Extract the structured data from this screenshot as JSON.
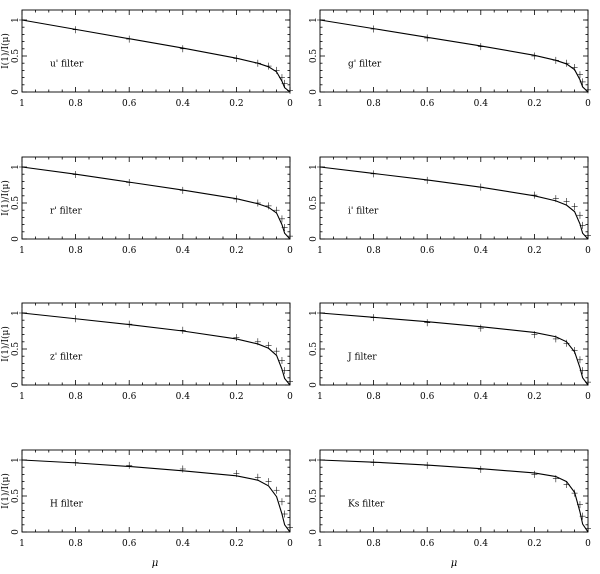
{
  "figure": {
    "y_axis_label": "I(1)/I(μ)",
    "x_axis_label": "μ"
  },
  "chart_data": [
    {
      "type": "line",
      "panel_label": "u' filter",
      "x_reversed": true,
      "xlim": [
        1,
        0
      ],
      "ylim": [
        0,
        1
      ],
      "x_ticks": [
        "1",
        "0.8",
        "0.6",
        "0.4",
        "0.2",
        "0"
      ],
      "y_ticks": [
        "0",
        "0.5",
        "1"
      ],
      "series": [
        {
          "style": "solid",
          "x": [
            1,
            0.8,
            0.6,
            0.4,
            0.2,
            0.12,
            0.08,
            0.05,
            0.03,
            0.02,
            0
          ],
          "y": [
            1,
            0.87,
            0.74,
            0.61,
            0.47,
            0.4,
            0.35,
            0.28,
            0.15,
            0.06,
            0
          ]
        },
        {
          "style": "cross",
          "x": [
            1,
            0.8,
            0.6,
            0.4,
            0.2,
            0.12,
            0.08,
            0.05,
            0.03,
            0.02,
            0
          ],
          "y": [
            1,
            0.865,
            0.735,
            0.6,
            0.465,
            0.4,
            0.36,
            0.3,
            0.2,
            0.12,
            0.02
          ]
        }
      ]
    },
    {
      "type": "line",
      "panel_label": "g' filter",
      "x_reversed": true,
      "xlim": [
        1,
        0
      ],
      "ylim": [
        0,
        1
      ],
      "x_ticks": [
        "1",
        "0.8",
        "0.6",
        "0.4",
        "0.2",
        "0"
      ],
      "y_ticks": [
        "0",
        "0.5",
        "1"
      ],
      "series": [
        {
          "style": "solid",
          "x": [
            1,
            0.8,
            0.6,
            0.4,
            0.2,
            0.12,
            0.08,
            0.05,
            0.03,
            0.02,
            0
          ],
          "y": [
            1,
            0.88,
            0.76,
            0.64,
            0.51,
            0.44,
            0.39,
            0.31,
            0.17,
            0.07,
            0
          ]
        },
        {
          "style": "cross",
          "x": [
            1,
            0.8,
            0.6,
            0.4,
            0.2,
            0.12,
            0.08,
            0.05,
            0.03,
            0.02,
            0
          ],
          "y": [
            1,
            0.875,
            0.75,
            0.63,
            0.5,
            0.44,
            0.4,
            0.34,
            0.24,
            0.14,
            0.03
          ]
        }
      ]
    },
    {
      "type": "line",
      "panel_label": "r' filter",
      "x_reversed": true,
      "xlim": [
        1,
        0
      ],
      "ylim": [
        0,
        1
      ],
      "x_ticks": [
        "1",
        "0.8",
        "0.6",
        "0.4",
        "0.2",
        "0"
      ],
      "y_ticks": [
        "0",
        "0.5",
        "1"
      ],
      "series": [
        {
          "style": "solid",
          "x": [
            1,
            0.8,
            0.6,
            0.4,
            0.2,
            0.12,
            0.08,
            0.05,
            0.03,
            0.02,
            0
          ],
          "y": [
            1,
            0.9,
            0.79,
            0.68,
            0.56,
            0.49,
            0.44,
            0.36,
            0.2,
            0.08,
            0
          ]
        },
        {
          "style": "cross",
          "x": [
            1,
            0.8,
            0.6,
            0.4,
            0.2,
            0.12,
            0.08,
            0.05,
            0.03,
            0.02,
            0
          ],
          "y": [
            1,
            0.895,
            0.785,
            0.675,
            0.555,
            0.5,
            0.46,
            0.4,
            0.28,
            0.16,
            0.04
          ]
        }
      ]
    },
    {
      "type": "line",
      "panel_label": "i' filter",
      "x_reversed": true,
      "xlim": [
        1,
        0
      ],
      "ylim": [
        0,
        1
      ],
      "x_ticks": [
        "1",
        "0.8",
        "0.6",
        "0.4",
        "0.2",
        "0"
      ],
      "y_ticks": [
        "0",
        "0.5",
        "1"
      ],
      "series": [
        {
          "style": "solid",
          "x": [
            1,
            0.8,
            0.6,
            0.4,
            0.2,
            0.12,
            0.08,
            0.05,
            0.03,
            0.02,
            0
          ],
          "y": [
            1,
            0.91,
            0.82,
            0.72,
            0.6,
            0.53,
            0.47,
            0.38,
            0.21,
            0.08,
            0
          ]
        },
        {
          "style": "cross",
          "x": [
            1,
            0.8,
            0.6,
            0.4,
            0.2,
            0.12,
            0.08,
            0.05,
            0.03,
            0.02,
            0
          ],
          "y": [
            1,
            0.905,
            0.815,
            0.72,
            0.61,
            0.56,
            0.52,
            0.45,
            0.33,
            0.19,
            0.05
          ]
        }
      ]
    },
    {
      "type": "line",
      "panel_label": "z' filter",
      "x_reversed": true,
      "xlim": [
        1,
        0
      ],
      "ylim": [
        0,
        1
      ],
      "x_ticks": [
        "1",
        "0.8",
        "0.6",
        "0.4",
        "0.2",
        "0"
      ],
      "y_ticks": [
        "0",
        "0.5",
        "1"
      ],
      "series": [
        {
          "style": "solid",
          "x": [
            1,
            0.8,
            0.6,
            0.4,
            0.2,
            0.12,
            0.08,
            0.05,
            0.03,
            0.02,
            0
          ],
          "y": [
            1,
            0.92,
            0.84,
            0.75,
            0.64,
            0.57,
            0.51,
            0.41,
            0.22,
            0.09,
            0
          ]
        },
        {
          "style": "cross",
          "x": [
            1,
            0.8,
            0.6,
            0.4,
            0.2,
            0.12,
            0.08,
            0.05,
            0.03,
            0.02,
            0
          ],
          "y": [
            1,
            0.92,
            0.845,
            0.76,
            0.66,
            0.6,
            0.55,
            0.47,
            0.34,
            0.2,
            0.05
          ]
        }
      ]
    },
    {
      "type": "line",
      "panel_label": "J filter",
      "x_reversed": true,
      "xlim": [
        1,
        0
      ],
      "ylim": [
        0,
        1
      ],
      "x_ticks": [
        "1",
        "0.8",
        "0.6",
        "0.4",
        "0.2",
        "0"
      ],
      "y_ticks": [
        "0",
        "0.5",
        "1"
      ],
      "series": [
        {
          "style": "solid",
          "x": [
            1,
            0.8,
            0.6,
            0.4,
            0.2,
            0.12,
            0.08,
            0.05,
            0.03,
            0.02,
            0
          ],
          "y": [
            1,
            0.94,
            0.88,
            0.81,
            0.73,
            0.67,
            0.6,
            0.46,
            0.24,
            0.1,
            0
          ]
        },
        {
          "style": "cross",
          "x": [
            1,
            0.8,
            0.6,
            0.4,
            0.2,
            0.12,
            0.08,
            0.05,
            0.03,
            0.02,
            0
          ],
          "y": [
            1,
            0.935,
            0.865,
            0.79,
            0.7,
            0.64,
            0.58,
            0.48,
            0.35,
            0.2,
            0.04
          ]
        }
      ]
    },
    {
      "type": "line",
      "panel_label": "H filter",
      "x_reversed": true,
      "xlim": [
        1,
        0
      ],
      "ylim": [
        0,
        1
      ],
      "x_ticks": [
        "1",
        "0.8",
        "0.6",
        "0.4",
        "0.2",
        "0"
      ],
      "y_ticks": [
        "0",
        "0.5",
        "1"
      ],
      "series": [
        {
          "style": "solid",
          "x": [
            1,
            0.8,
            0.6,
            0.4,
            0.2,
            0.12,
            0.08,
            0.05,
            0.03,
            0.02,
            0
          ],
          "y": [
            1,
            0.96,
            0.91,
            0.85,
            0.78,
            0.72,
            0.64,
            0.49,
            0.25,
            0.1,
            0
          ]
        },
        {
          "style": "cross",
          "x": [
            1,
            0.8,
            0.6,
            0.4,
            0.2,
            0.12,
            0.08,
            0.05,
            0.03,
            0.02,
            0
          ],
          "y": [
            1,
            0.965,
            0.925,
            0.875,
            0.81,
            0.76,
            0.7,
            0.58,
            0.42,
            0.25,
            0.06
          ]
        }
      ]
    },
    {
      "type": "line",
      "panel_label": "Ks filter",
      "x_reversed": true,
      "xlim": [
        1,
        0
      ],
      "ylim": [
        0,
        1
      ],
      "x_ticks": [
        "1",
        "0.8",
        "0.6",
        "0.4",
        "0.2",
        "0"
      ],
      "y_ticks": [
        "0",
        "0.5",
        "1"
      ],
      "series": [
        {
          "style": "solid",
          "x": [
            1,
            0.8,
            0.6,
            0.4,
            0.2,
            0.12,
            0.08,
            0.05,
            0.03,
            0.02,
            0
          ],
          "y": [
            1,
            0.97,
            0.93,
            0.88,
            0.82,
            0.77,
            0.7,
            0.55,
            0.28,
            0.11,
            0
          ]
        },
        {
          "style": "cross",
          "x": [
            1,
            0.8,
            0.6,
            0.4,
            0.2,
            0.12,
            0.08,
            0.05,
            0.03,
            0.02,
            0
          ],
          "y": [
            1,
            0.965,
            0.925,
            0.87,
            0.8,
            0.74,
            0.66,
            0.54,
            0.38,
            0.22,
            0.05
          ]
        }
      ]
    }
  ]
}
